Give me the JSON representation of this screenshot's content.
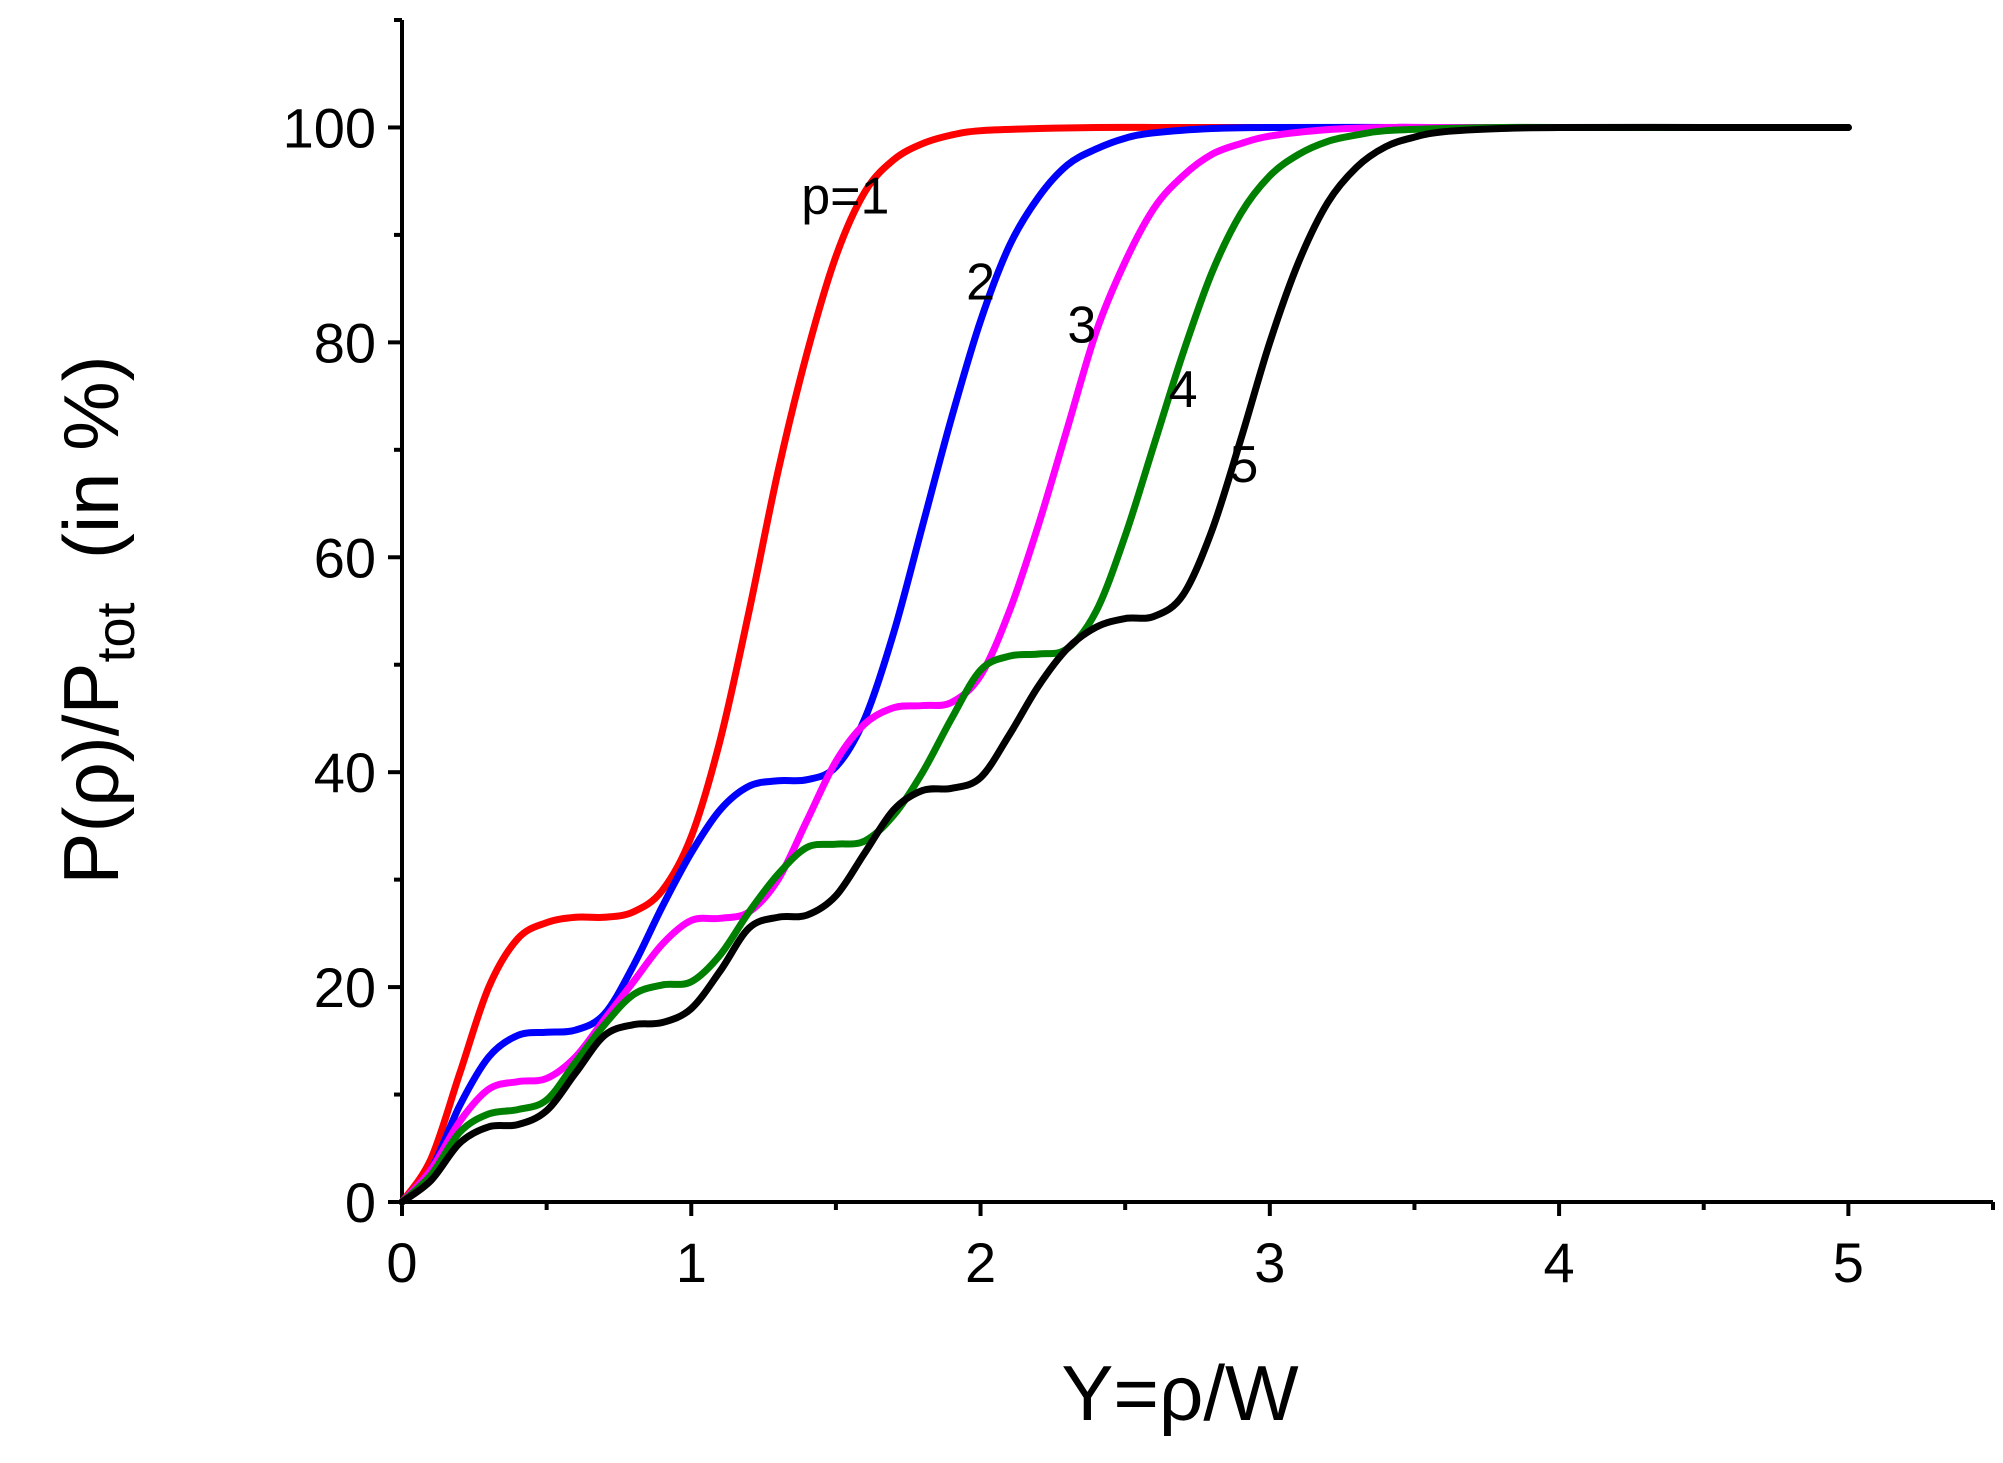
{
  "chart_data": {
    "type": "line",
    "title": "",
    "xlabel": "Y=ρ/W",
    "ylabel_main": "P(ρ)/P",
    "ylabel_sub": "tot",
    "ylabel_tail": "  (in %)",
    "xlim": [
      0,
      5.5
    ],
    "ylim": [
      0,
      110
    ],
    "xticks": [
      0,
      1,
      2,
      3,
      4,
      5
    ],
    "xtick_labels": [
      "0",
      "1",
      "2",
      "3",
      "4",
      "5"
    ],
    "xminor": [
      0.5,
      1.5,
      2.5,
      3.5,
      4.5,
      5.5
    ],
    "yticks": [
      0,
      20,
      40,
      60,
      80,
      100
    ],
    "ytick_labels": [
      "0",
      "20",
      "40",
      "60",
      "80",
      "100"
    ],
    "yminor": [
      10,
      30,
      50,
      70,
      90,
      110
    ],
    "grid": false,
    "series": [
      {
        "name": "p=1",
        "label": "p=1",
        "color": "#ff0000",
        "x": [
          0,
          0.1,
          0.2,
          0.3,
          0.4,
          0.5,
          0.6,
          0.7,
          0.8,
          0.9,
          1.0,
          1.1,
          1.2,
          1.3,
          1.4,
          1.5,
          1.6,
          1.7,
          1.8,
          1.9,
          2.0,
          2.2,
          2.4,
          2.6,
          2.8,
          3.0,
          3.5,
          4.0,
          4.5,
          5.0
        ],
        "y": [
          0,
          4,
          12,
          20,
          24.5,
          26,
          26.5,
          26.5,
          27,
          29,
          34,
          43,
          55,
          68,
          79,
          88,
          94,
          97,
          98.5,
          99.3,
          99.7,
          99.9,
          100,
          100,
          100,
          100,
          100,
          100,
          100,
          100
        ]
      },
      {
        "name": "2",
        "label": "2",
        "color": "#0000ff",
        "x": [
          0,
          0.1,
          0.2,
          0.3,
          0.4,
          0.5,
          0.6,
          0.7,
          0.8,
          0.9,
          1.0,
          1.1,
          1.2,
          1.3,
          1.4,
          1.5,
          1.6,
          1.7,
          1.8,
          1.9,
          2.0,
          2.1,
          2.2,
          2.3,
          2.4,
          2.5,
          2.6,
          2.8,
          3.0,
          3.5,
          4.0,
          4.5,
          5.0
        ],
        "y": [
          0,
          3,
          9,
          13.5,
          15.5,
          15.8,
          16,
          17.5,
          22,
          27.5,
          32.5,
          36.5,
          38.7,
          39.2,
          39.3,
          40.5,
          45,
          53,
          63,
          73,
          82,
          89,
          93.5,
          96.5,
          98,
          99,
          99.5,
          99.9,
          100,
          100,
          100,
          100,
          100
        ]
      },
      {
        "name": "3",
        "label": "3",
        "color": "#ff00ff",
        "x": [
          0,
          0.1,
          0.2,
          0.3,
          0.4,
          0.5,
          0.6,
          0.7,
          0.8,
          0.9,
          1.0,
          1.1,
          1.2,
          1.3,
          1.4,
          1.5,
          1.6,
          1.7,
          1.8,
          1.9,
          2.0,
          2.1,
          2.2,
          2.3,
          2.4,
          2.5,
          2.6,
          2.7,
          2.8,
          2.9,
          3.0,
          3.2,
          3.4,
          3.6,
          4.0,
          4.5,
          5.0
        ],
        "y": [
          0,
          3,
          7.5,
          10.5,
          11.2,
          11.5,
          13.5,
          17,
          20.5,
          24,
          26.2,
          26.4,
          27,
          30,
          35.5,
          41,
          44.5,
          46,
          46.2,
          46.5,
          49,
          55,
          63,
          72,
          81,
          87.5,
          92.5,
          95.5,
          97.5,
          98.5,
          99.2,
          99.8,
          100,
          100,
          100,
          100,
          100
        ]
      },
      {
        "name": "4",
        "label": "4",
        "color": "#008000",
        "x": [
          0,
          0.1,
          0.2,
          0.3,
          0.4,
          0.5,
          0.6,
          0.7,
          0.8,
          0.9,
          1.0,
          1.1,
          1.2,
          1.3,
          1.4,
          1.5,
          1.6,
          1.7,
          1.8,
          1.9,
          2.0,
          2.1,
          2.2,
          2.3,
          2.4,
          2.5,
          2.6,
          2.7,
          2.8,
          2.9,
          3.0,
          3.1,
          3.2,
          3.3,
          3.4,
          3.6,
          3.8,
          4.0,
          4.5,
          5.0
        ],
        "y": [
          0,
          2.5,
          6.5,
          8.2,
          8.6,
          9.5,
          13,
          16.5,
          19.3,
          20.2,
          20.5,
          23,
          27,
          30.5,
          33,
          33.3,
          33.6,
          36,
          40,
          45,
          49.5,
          50.8,
          51,
          51.5,
          55,
          62,
          70.5,
          79,
          86.5,
          92,
          95.5,
          97.5,
          98.7,
          99.3,
          99.7,
          99.9,
          100,
          100,
          100,
          100
        ]
      },
      {
        "name": "5",
        "label": "5",
        "color": "#000000",
        "x": [
          0,
          0.1,
          0.2,
          0.3,
          0.4,
          0.5,
          0.6,
          0.7,
          0.8,
          0.9,
          1.0,
          1.1,
          1.2,
          1.3,
          1.4,
          1.5,
          1.6,
          1.7,
          1.8,
          1.9,
          2.0,
          2.1,
          2.2,
          2.3,
          2.4,
          2.5,
          2.6,
          2.7,
          2.8,
          2.9,
          3.0,
          3.1,
          3.2,
          3.3,
          3.4,
          3.5,
          3.6,
          3.8,
          4.0,
          4.5,
          5.0
        ],
        "y": [
          0,
          2,
          5.5,
          7,
          7.2,
          8.5,
          12,
          15.5,
          16.5,
          16.7,
          18,
          21.5,
          25.5,
          26.5,
          26.7,
          28.5,
          32.5,
          36.5,
          38.3,
          38.5,
          39.5,
          43.5,
          48,
          51.5,
          53.5,
          54.3,
          54.5,
          56.5,
          62.5,
          71,
          80,
          87.5,
          93,
          96.3,
          98.2,
          99.1,
          99.6,
          99.9,
          100,
          100,
          100
        ]
      }
    ],
    "curve_label_positions": [
      {
        "series": 0,
        "x": 1.38,
        "y": 92
      },
      {
        "series": 1,
        "x": 1.95,
        "y": 84
      },
      {
        "series": 2,
        "x": 2.3,
        "y": 80
      },
      {
        "series": 3,
        "x": 2.65,
        "y": 74
      },
      {
        "series": 4,
        "x": 2.86,
        "y": 67
      }
    ]
  }
}
